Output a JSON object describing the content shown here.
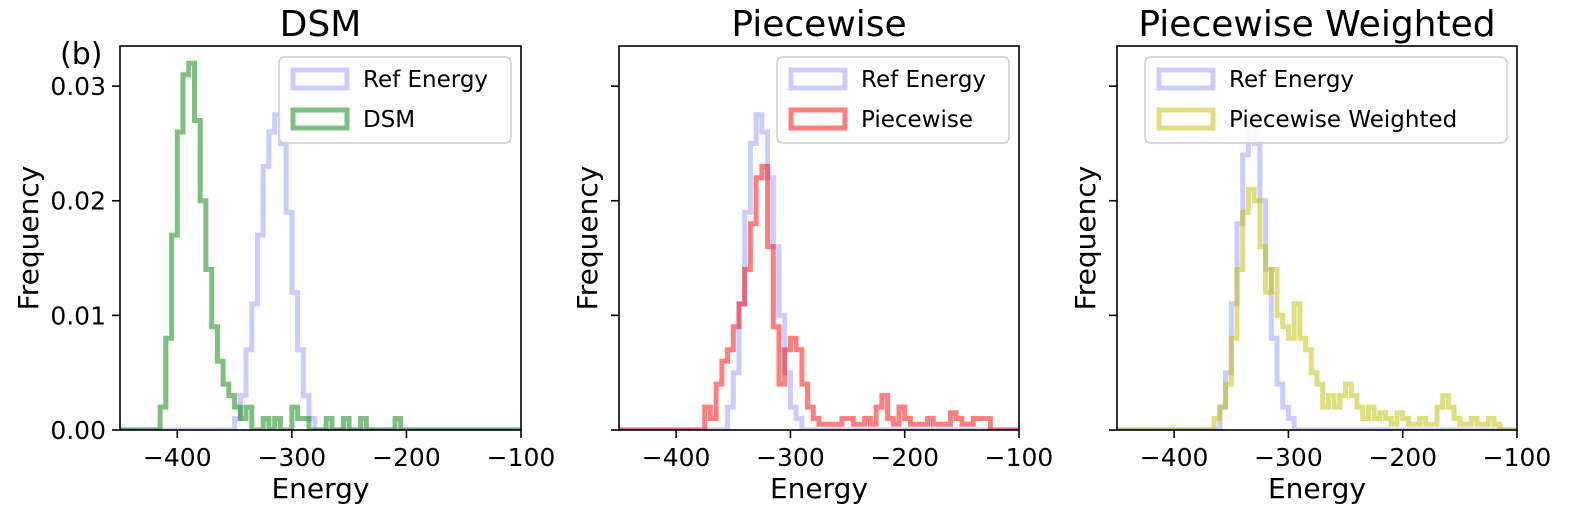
{
  "panel_label": "(b)",
  "chart_data": [
    {
      "type": "histogram",
      "title": "DSM",
      "xlabel": "Energy",
      "ylabel": "Frequency",
      "xlim": [
        -450,
        -100
      ],
      "ylim": [
        0,
        0.0335
      ],
      "xticks": [
        -400,
        -300,
        -200,
        -100
      ],
      "xtick_labels": [
        "−400",
        "−300",
        "−200",
        "−100"
      ],
      "yticks": [
        0,
        0.01,
        0.02,
        0.03
      ],
      "ytick_labels": [
        "0.00",
        "0.01",
        "0.02",
        "0.03"
      ],
      "show_ytick_labels": true,
      "legend_position": "top-right",
      "series": [
        {
          "name": "Ref Energy",
          "color": "#0000ff",
          "alpha": 0.2,
          "points": [
            [
              -450,
              0
            ],
            [
              -355,
              0
            ],
            [
              -350,
              0.001
            ],
            [
              -345,
              0.003
            ],
            [
              -340,
              0.007
            ],
            [
              -335,
              0.011
            ],
            [
              -330,
              0.017
            ],
            [
              -325,
              0.023
            ],
            [
              -320,
              0.026
            ],
            [
              -315,
              0.0275
            ],
            [
              -310,
              0.025
            ],
            [
              -305,
              0.019
            ],
            [
              -300,
              0.012
            ],
            [
              -295,
              0.007
            ],
            [
              -290,
              0.003
            ],
            [
              -285,
              0.001
            ],
            [
              -280,
              0
            ],
            [
              -100,
              0
            ]
          ]
        },
        {
          "name": "DSM",
          "color": "#008000",
          "alpha": 0.5,
          "points": [
            [
              -450,
              0
            ],
            [
              -420,
              0
            ],
            [
              -415,
              0.002
            ],
            [
              -410,
              0.008
            ],
            [
              -405,
              0.017
            ],
            [
              -400,
              0.026
            ],
            [
              -395,
              0.031
            ],
            [
              -390,
              0.032
            ],
            [
              -385,
              0.027
            ],
            [
              -380,
              0.02
            ],
            [
              -375,
              0.014
            ],
            [
              -370,
              0.009
            ],
            [
              -365,
              0.006
            ],
            [
              -360,
              0.004
            ],
            [
              -355,
              0.003
            ],
            [
              -350,
              0.002
            ],
            [
              -345,
              0.001
            ],
            [
              -340,
              0.002
            ],
            [
              -335,
              0
            ],
            [
              -325,
              0.001
            ],
            [
              -320,
              0
            ],
            [
              -315,
              0.001
            ],
            [
              -310,
              0
            ],
            [
              -300,
              0.002
            ],
            [
              -295,
              0.001
            ],
            [
              -290,
              0.001
            ],
            [
              -285,
              0
            ],
            [
              -270,
              0.001
            ],
            [
              -265,
              0
            ],
            [
              -255,
              0.001
            ],
            [
              -250,
              0
            ],
            [
              -240,
              0.001
            ],
            [
              -235,
              0
            ],
            [
              -210,
              0.001
            ],
            [
              -205,
              0
            ],
            [
              -100,
              0
            ]
          ]
        }
      ]
    },
    {
      "type": "histogram",
      "title": "Piecewise",
      "xlabel": "Energy",
      "ylabel": "Frequency",
      "xlim": [
        -450,
        -100
      ],
      "ylim": [
        0,
        0.0335
      ],
      "xticks": [
        -400,
        -300,
        -200,
        -100
      ],
      "xtick_labels": [
        "−400",
        "−300",
        "−200",
        "−100"
      ],
      "yticks": [
        0,
        0.01,
        0.02,
        0.03
      ],
      "ytick_labels": [
        "0.00",
        "0.01",
        "0.02",
        "0.03"
      ],
      "show_ytick_labels": false,
      "legend_position": "top-right",
      "series": [
        {
          "name": "Ref Energy",
          "color": "#0000ff",
          "alpha": 0.2,
          "points": [
            [
              -450,
              0
            ],
            [
              -360,
              0
            ],
            [
              -355,
              0.002
            ],
            [
              -350,
              0.005
            ],
            [
              -345,
              0.011
            ],
            [
              -340,
              0.019
            ],
            [
              -335,
              0.025
            ],
            [
              -330,
              0.0275
            ],
            [
              -325,
              0.026
            ],
            [
              -320,
              0.022
            ],
            [
              -315,
              0.016
            ],
            [
              -310,
              0.01
            ],
            [
              -305,
              0.005
            ],
            [
              -300,
              0.002
            ],
            [
              -295,
              0.001
            ],
            [
              -290,
              0
            ],
            [
              -100,
              0
            ]
          ]
        },
        {
          "name": "Piecewise",
          "color": "#ff0000",
          "alpha": 0.5,
          "points": [
            [
              -450,
              0
            ],
            [
              -380,
              0
            ],
            [
              -375,
              0.002
            ],
            [
              -370,
              0.001
            ],
            [
              -365,
              0.004
            ],
            [
              -360,
              0.006
            ],
            [
              -355,
              0.007
            ],
            [
              -350,
              0.009
            ],
            [
              -345,
              0.011
            ],
            [
              -340,
              0.014
            ],
            [
              -335,
              0.018
            ],
            [
              -330,
              0.022
            ],
            [
              -325,
              0.023
            ],
            [
              -320,
              0.016
            ],
            [
              -315,
              0.009
            ],
            [
              -310,
              0.004
            ],
            [
              -305,
              0.007
            ],
            [
              -300,
              0.008
            ],
            [
              -295,
              0.007
            ],
            [
              -290,
              0.004
            ],
            [
              -285,
              0.002
            ],
            [
              -280,
              0.001
            ],
            [
              -275,
              0.0005
            ],
            [
              -270,
              0.0005
            ],
            [
              -255,
              0.001
            ],
            [
              -245,
              0.0005
            ],
            [
              -235,
              0.001
            ],
            [
              -230,
              0.0005
            ],
            [
              -225,
              0.002
            ],
            [
              -220,
              0.003
            ],
            [
              -215,
              0.001
            ],
            [
              -210,
              0.0005
            ],
            [
              -205,
              0.002
            ],
            [
              -200,
              0.001
            ],
            [
              -195,
              0.0005
            ],
            [
              -180,
              0.001
            ],
            [
              -175,
              0.0005
            ],
            [
              -160,
              0.0015
            ],
            [
              -155,
              0.001
            ],
            [
              -150,
              0.0005
            ],
            [
              -140,
              0.001
            ],
            [
              -125,
              0
            ],
            [
              -100,
              0
            ]
          ]
        }
      ]
    },
    {
      "type": "histogram",
      "title": "Piecewise Weighted",
      "xlabel": "Energy",
      "ylabel": "Frequency",
      "xlim": [
        -450,
        -100
      ],
      "ylim": [
        0,
        0.0335
      ],
      "xticks": [
        -400,
        -300,
        -200,
        -100
      ],
      "xtick_labels": [
        "−400",
        "−300",
        "−200",
        "−100"
      ],
      "yticks": [
        0,
        0.01,
        0.02,
        0.03
      ],
      "ytick_labels": [
        "0.00",
        "0.01",
        "0.02",
        "0.03"
      ],
      "show_ytick_labels": false,
      "legend_position": "top-right",
      "series": [
        {
          "name": "Ref Energy",
          "color": "#0000ff",
          "alpha": 0.2,
          "points": [
            [
              -450,
              0
            ],
            [
              -365,
              0
            ],
            [
              -360,
              0.002
            ],
            [
              -355,
              0.005
            ],
            [
              -350,
              0.011
            ],
            [
              -345,
              0.018
            ],
            [
              -340,
              0.024
            ],
            [
              -335,
              0.0275
            ],
            [
              -330,
              0.025
            ],
            [
              -325,
              0.02
            ],
            [
              -320,
              0.014
            ],
            [
              -315,
              0.008
            ],
            [
              -310,
              0.004
            ],
            [
              -305,
              0.002
            ],
            [
              -300,
              0.001
            ],
            [
              -295,
              0
            ],
            [
              -100,
              0
            ]
          ]
        },
        {
          "name": "Piecewise Weighted",
          "color": "#bfbf00",
          "alpha": 0.5,
          "points": [
            [
              -450,
              0
            ],
            [
              -370,
              0
            ],
            [
              -365,
              0.001
            ],
            [
              -360,
              0.002
            ],
            [
              -355,
              0.004
            ],
            [
              -350,
              0.008
            ],
            [
              -345,
              0.014
            ],
            [
              -340,
              0.019
            ],
            [
              -335,
              0.021
            ],
            [
              -330,
              0.02
            ],
            [
              -325,
              0.016
            ],
            [
              -320,
              0.012
            ],
            [
              -315,
              0.014
            ],
            [
              -310,
              0.01
            ],
            [
              -305,
              0.009
            ],
            [
              -300,
              0.008
            ],
            [
              -295,
              0.011
            ],
            [
              -290,
              0.008
            ],
            [
              -285,
              0.007
            ],
            [
              -280,
              0.005
            ],
            [
              -275,
              0.004
            ],
            [
              -270,
              0.002
            ],
            [
              -265,
              0.003
            ],
            [
              -260,
              0.002
            ],
            [
              -255,
              0.003
            ],
            [
              -250,
              0.004
            ],
            [
              -245,
              0.003
            ],
            [
              -240,
              0.002
            ],
            [
              -235,
              0.001
            ],
            [
              -230,
              0.002
            ],
            [
              -225,
              0.001
            ],
            [
              -220,
              0.0015
            ],
            [
              -215,
              0.001
            ],
            [
              -210,
              0.0005
            ],
            [
              -205,
              0.0015
            ],
            [
              -200,
              0.001
            ],
            [
              -195,
              0.0005
            ],
            [
              -185,
              0.001
            ],
            [
              -180,
              0.0005
            ],
            [
              -170,
              0.002
            ],
            [
              -165,
              0.003
            ],
            [
              -160,
              0.002
            ],
            [
              -155,
              0.001
            ],
            [
              -150,
              0.0005
            ],
            [
              -140,
              0.001
            ],
            [
              -135,
              0.0005
            ],
            [
              -125,
              0.001
            ],
            [
              -120,
              0.0005
            ],
            [
              -115,
              0
            ],
            [
              -100,
              0
            ]
          ]
        }
      ]
    }
  ]
}
